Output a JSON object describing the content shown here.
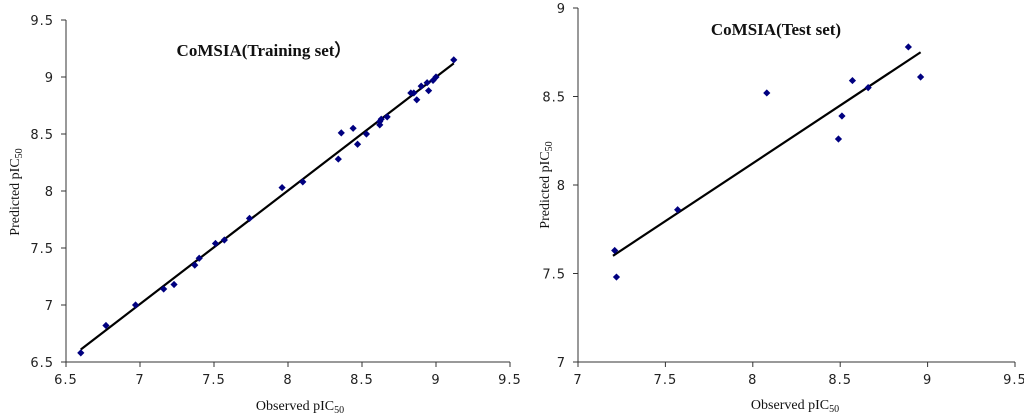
{
  "chart_data": [
    {
      "type": "scatter",
      "title": "CoMSIA(Training set）",
      "xlabel_main": "Observed pIC",
      "xlabel_sub": "50",
      "ylabel_main": "Predicted pIC",
      "ylabel_sub": "50",
      "xlim": [
        6.5,
        9.5
      ],
      "ylim": [
        6.5,
        9.5
      ],
      "xticks": [
        "6.5",
        "7",
        "7.5",
        "8",
        "8.5",
        "9",
        "9.5"
      ],
      "yticks": [
        "6.5",
        "7",
        "7.5",
        "8",
        "8.5",
        "9",
        "9.5"
      ],
      "xtick_values": [
        6.5,
        7,
        7.5,
        8,
        8.5,
        9,
        9.5
      ],
      "ytick_values": [
        6.5,
        7,
        7.5,
        8,
        8.5,
        9,
        9.5
      ],
      "marker_color": "#000080",
      "line_color": "#000000",
      "points": [
        [
          6.6,
          6.58
        ],
        [
          6.77,
          6.82
        ],
        [
          6.97,
          7.0
        ],
        [
          7.16,
          7.14
        ],
        [
          7.23,
          7.18
        ],
        [
          7.37,
          7.35
        ],
        [
          7.4,
          7.41
        ],
        [
          7.51,
          7.54
        ],
        [
          7.57,
          7.57
        ],
        [
          7.74,
          7.76
        ],
        [
          7.96,
          8.03
        ],
        [
          8.1,
          8.08
        ],
        [
          8.34,
          8.28
        ],
        [
          8.36,
          8.51
        ],
        [
          8.44,
          8.55
        ],
        [
          8.47,
          8.41
        ],
        [
          8.53,
          8.5
        ],
        [
          8.62,
          8.58
        ],
        [
          8.62,
          8.61
        ],
        [
          8.63,
          8.63
        ],
        [
          8.67,
          8.65
        ],
        [
          8.83,
          8.86
        ],
        [
          8.85,
          8.86
        ],
        [
          8.87,
          8.8
        ],
        [
          8.9,
          8.92
        ],
        [
          8.94,
          8.95
        ],
        [
          8.95,
          8.88
        ],
        [
          8.98,
          8.97
        ],
        [
          9.0,
          9.0
        ],
        [
          9.12,
          9.15
        ]
      ],
      "fit_line": [
        [
          6.6,
          6.61
        ],
        [
          9.12,
          9.12
        ]
      ]
    },
    {
      "type": "scatter",
      "title": "CoMSIA(Test set)",
      "xlabel_main": "Observed pIC",
      "xlabel_sub": "50",
      "ylabel_main": "Predicted pIC",
      "ylabel_sub": "50",
      "xlim": [
        7,
        9.5
      ],
      "ylim": [
        7,
        9
      ],
      "xticks": [
        "7",
        "7.5",
        "8",
        "8.5",
        "9",
        "9.5"
      ],
      "yticks": [
        "7",
        "7.5",
        "8",
        "8.5",
        "9"
      ],
      "xtick_values": [
        7,
        7.5,
        8,
        8.5,
        9,
        9.5
      ],
      "ytick_values": [
        7,
        7.5,
        8,
        8.5,
        9
      ],
      "marker_color": "#000080",
      "line_color": "#000000",
      "points": [
        [
          7.21,
          7.63
        ],
        [
          7.22,
          7.48
        ],
        [
          7.57,
          7.86
        ],
        [
          8.08,
          8.52
        ],
        [
          8.49,
          8.26
        ],
        [
          8.51,
          8.39
        ],
        [
          8.57,
          8.59
        ],
        [
          8.66,
          8.55
        ],
        [
          8.89,
          8.78
        ],
        [
          8.96,
          8.61
        ]
      ],
      "fit_line": [
        [
          7.2,
          7.6
        ],
        [
          8.96,
          8.75
        ]
      ]
    }
  ]
}
